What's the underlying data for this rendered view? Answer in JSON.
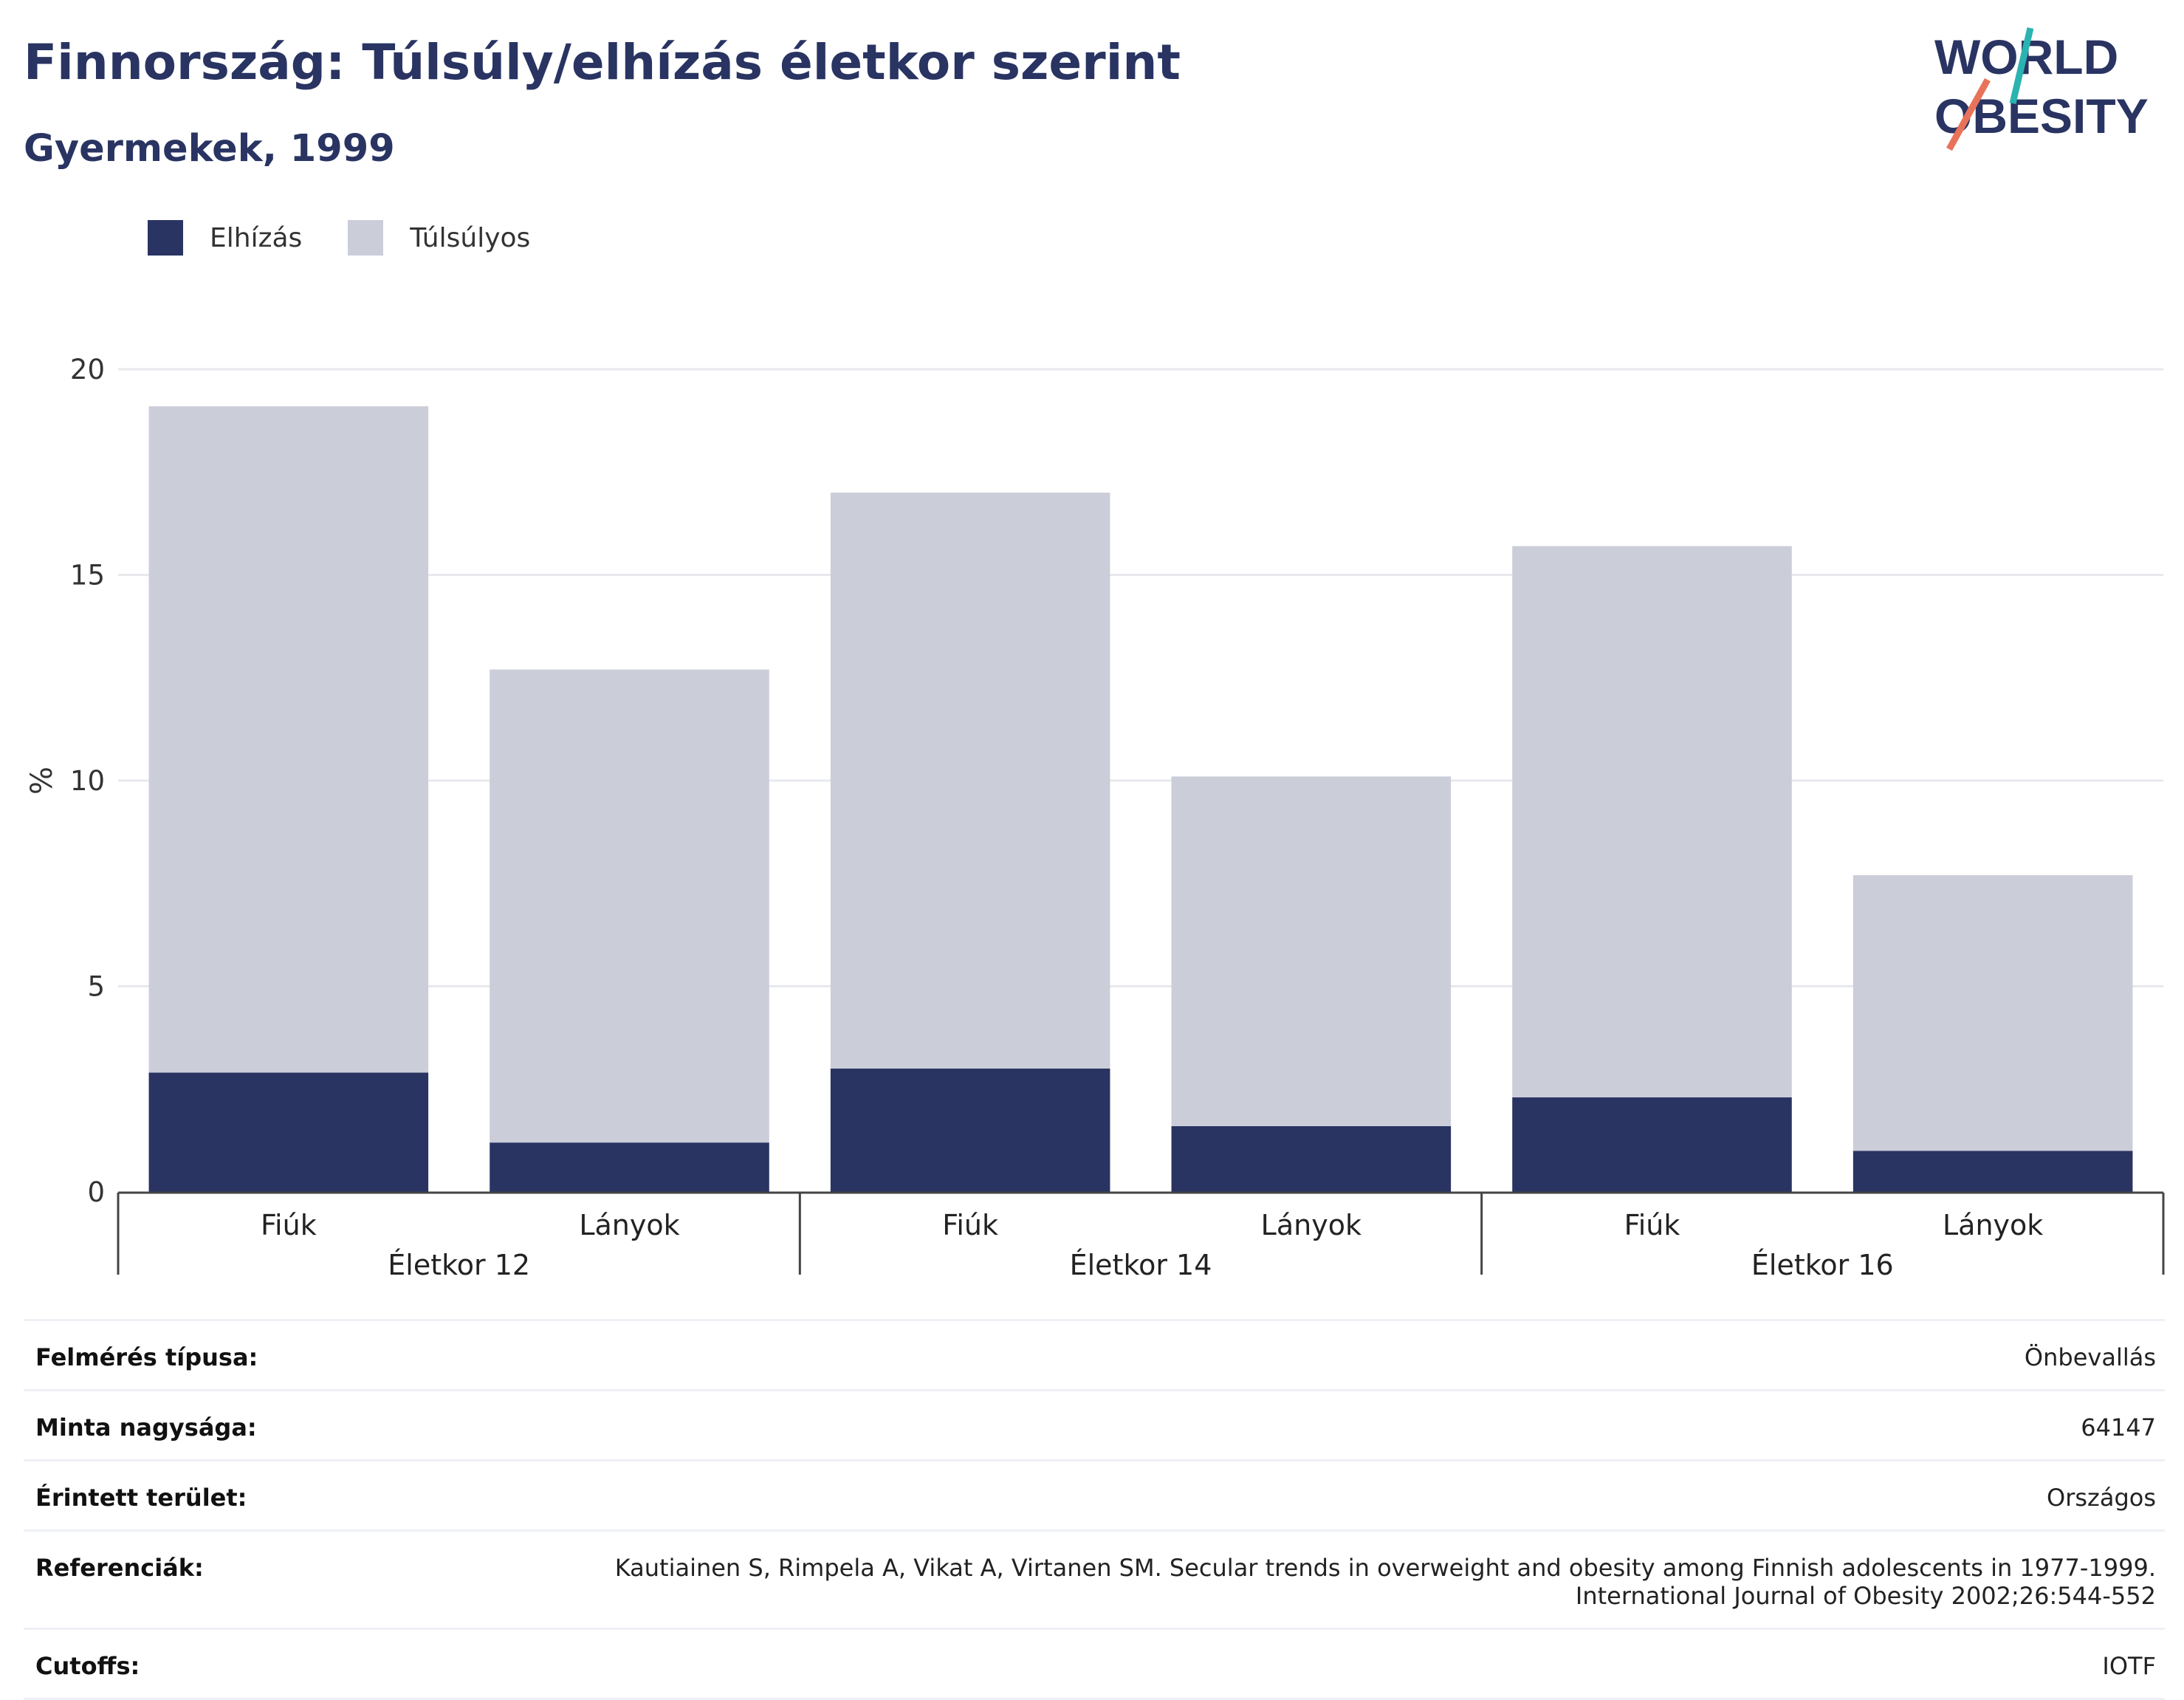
{
  "header": {
    "title": "Finnország: Túlsúly/elhízás életkor szerint",
    "subtitle": "Gyermekek, 1999"
  },
  "logo": {
    "line1": "WORLD",
    "line2": "OBESITY",
    "accent_teal": "#2bb3b1",
    "accent_orange": "#e8735a",
    "color": "#293462"
  },
  "legend": [
    {
      "label": "Elhízás",
      "color": "#293462"
    },
    {
      "label": "Túlsúlyos",
      "color": "#cbcdd9"
    }
  ],
  "chart_data": {
    "type": "bar",
    "stacked": true,
    "ylabel": "%",
    "ylim": [
      0,
      20
    ],
    "yticks": [
      0,
      5,
      10,
      15,
      20
    ],
    "grid": true,
    "legend_position": "top-left",
    "groups": [
      {
        "label": "Életkor 12",
        "categories": [
          "Fiúk",
          "Lányok"
        ]
      },
      {
        "label": "Életkor 14",
        "categories": [
          "Fiúk",
          "Lányok"
        ]
      },
      {
        "label": "Életkor 16",
        "categories": [
          "Fiúk",
          "Lányok"
        ]
      }
    ],
    "series": [
      {
        "name": "Elhízás",
        "color": "#293462",
        "values": [
          2.9,
          1.2,
          3.0,
          1.6,
          2.3,
          1.0
        ]
      },
      {
        "name": "Túlsúlyos",
        "color": "#cbcdd9",
        "values": [
          16.2,
          11.5,
          14.0,
          8.5,
          13.4,
          6.7
        ]
      }
    ]
  },
  "info": {
    "survey_type_label": "Felmérés típusa:",
    "survey_type_value": "Önbevallás",
    "sample_size_label": "Minta nagysága:",
    "sample_size_value": "64147",
    "area_label": "Érintett terület:",
    "area_value": "Országos",
    "references_label": "Referenciák:",
    "references_line1": "Kautiainen S, Rimpela A, Vikat A, Virtanen SM. Secular trends in overweight and obesity among Finnish adolescents in 1977-1999.",
    "references_line2": "International Journal of Obesity 2002;26:544-552",
    "cutoffs_label": "Cutoffs:",
    "cutoffs_value": "IOTF"
  }
}
